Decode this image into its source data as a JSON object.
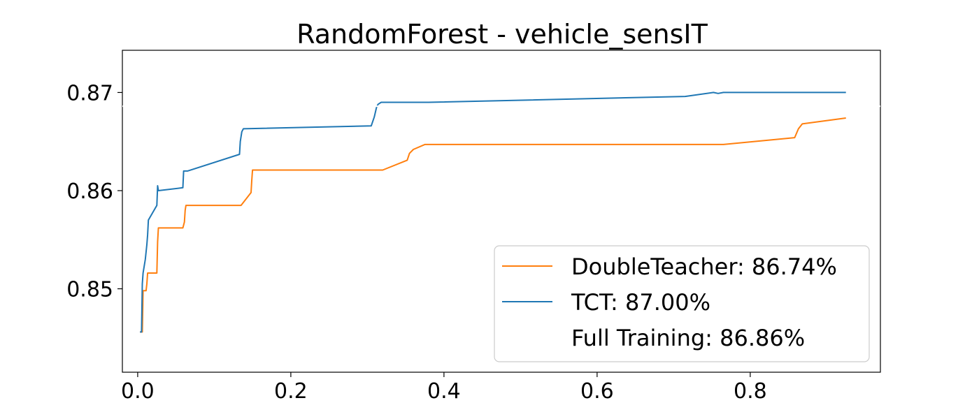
{
  "chart_data": {
    "type": "line",
    "title": "RandomForest - vehicle_sensIT",
    "xlabel": "",
    "ylabel": "",
    "xlim": [
      -0.02,
      0.97
    ],
    "ylim": [
      0.8415,
      0.8743
    ],
    "xticks": [
      0.0,
      0.2,
      0.4,
      0.6,
      0.8
    ],
    "xtick_labels": [
      "0.0",
      "0.2",
      "0.4",
      "0.6",
      "0.8"
    ],
    "yticks": [
      0.85,
      0.86,
      0.87
    ],
    "ytick_labels": [
      "0.85",
      "0.86",
      "0.87"
    ],
    "grid": false,
    "legend_position": "lower-right",
    "series": [
      {
        "name": "DoubleTeacher",
        "legend_label": "DoubleTeacher: 86.74%",
        "color": "#ff7f0e",
        "x": [
          0.003,
          0.006,
          0.007,
          0.008,
          0.011,
          0.012,
          0.013,
          0.014,
          0.016,
          0.025,
          0.026,
          0.027,
          0.028,
          0.059,
          0.061,
          0.062,
          0.063,
          0.065,
          0.135,
          0.148,
          0.149,
          0.15,
          0.152,
          0.32,
          0.352,
          0.355,
          0.36,
          0.375,
          0.765,
          0.858,
          0.863,
          0.868,
          0.925
        ],
        "y": [
          0.8456,
          0.8456,
          0.8498,
          0.8498,
          0.8498,
          0.8505,
          0.8516,
          0.8516,
          0.8516,
          0.8516,
          0.8548,
          0.8562,
          0.8562,
          0.8562,
          0.8568,
          0.858,
          0.8585,
          0.8585,
          0.8585,
          0.8598,
          0.861,
          0.8621,
          0.8621,
          0.8621,
          0.8631,
          0.8638,
          0.8642,
          0.8647,
          0.8647,
          0.8654,
          0.8663,
          0.8668,
          0.8674
        ]
      },
      {
        "name": "TCT",
        "legend_label": "TCT: 87.00%",
        "color": "#1f77b4",
        "x": [
          0.003,
          0.005,
          0.006,
          0.007,
          0.01,
          0.012,
          0.013,
          0.014,
          0.025,
          0.026,
          0.027,
          0.059,
          0.06,
          0.065,
          0.133,
          0.134,
          0.136,
          0.138,
          0.305,
          0.309,
          0.312,
          0.314,
          0.318,
          0.38,
          0.715,
          0.752,
          0.758,
          0.765,
          0.925
        ],
        "y": [
          0.8456,
          0.8456,
          0.8505,
          0.8516,
          0.853,
          0.8545,
          0.8555,
          0.857,
          0.8585,
          0.8605,
          0.86,
          0.8603,
          0.862,
          0.862,
          0.8637,
          0.865,
          0.866,
          0.8663,
          0.8666,
          0.8675,
          0.8685,
          0.8688,
          0.869,
          0.869,
          0.8696,
          0.87,
          0.8699,
          0.87,
          0.87
        ]
      },
      {
        "name": "Full Training",
        "legend_label": "Full Training: 86.86%",
        "color": "#ffffff",
        "value": 0.8686
      }
    ]
  }
}
